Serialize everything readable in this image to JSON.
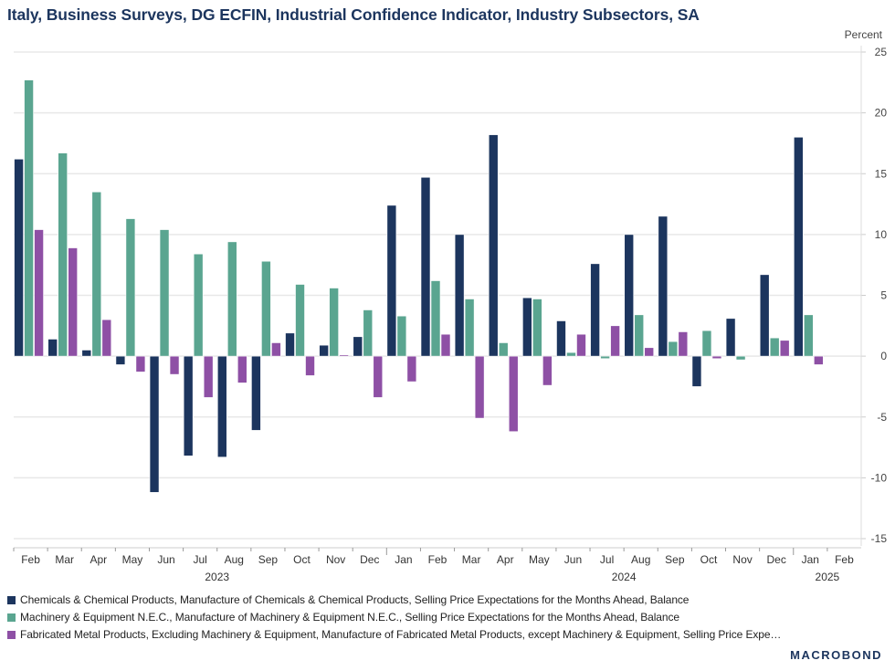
{
  "title": "Italy, Business Surveys, DG ECFIN, Industrial Confidence Indicator, Industry Subsectors, SA",
  "logo": "MACROBOND",
  "chart_data": {
    "type": "bar",
    "title": "Italy, Business Surveys, DG ECFIN, Industrial Confidence Indicator, Industry Subsectors, SA",
    "ylabel": "Percent",
    "ylim": [
      -15,
      25
    ],
    "yticks": [
      25,
      20,
      15,
      10,
      5,
      0,
      -5,
      -10,
      -15
    ],
    "grid": true,
    "y_axis_side": "right",
    "legend_placement": "bottom",
    "categories": [
      "Feb",
      "Mar",
      "Apr",
      "May",
      "Jun",
      "Jul",
      "Aug",
      "Sep",
      "Oct",
      "Nov",
      "Dec",
      "Jan",
      "Feb",
      "Mar",
      "Apr",
      "May",
      "Jun",
      "Jul",
      "Aug",
      "Sep",
      "Oct",
      "Nov",
      "Dec",
      "Jan",
      "Feb"
    ],
    "year_labels": [
      {
        "label": "2023",
        "category_index": 5.5
      },
      {
        "label": "2024",
        "category_index": 17.5
      },
      {
        "label": "2025",
        "category_index": 23.5
      }
    ],
    "series": [
      {
        "name": "Chemicals & Chemical Products, Manufacture of Chemicals & Chemical Products, Selling Price Expectations for the Months Ahead, Balance",
        "color": "#1c355e",
        "values": [
          16.2,
          1.4,
          0.5,
          -0.7,
          -11.2,
          -8.2,
          -8.3,
          -6.1,
          1.9,
          0.9,
          1.6,
          12.4,
          14.7,
          10.0,
          18.2,
          4.8,
          2.9,
          7.6,
          10.0,
          11.5,
          -2.5,
          3.1,
          6.7,
          18.0,
          null
        ]
      },
      {
        "name": "Machinery & Equipment N.E.C., Manufacture of Machinery & Equipment N.E.C., Selling Price Expectations for the Months Ahead, Balance",
        "color": "#5aa590",
        "values": [
          22.7,
          16.7,
          13.5,
          11.3,
          10.4,
          8.4,
          9.4,
          7.8,
          5.9,
          5.6,
          3.8,
          3.3,
          6.2,
          4.7,
          1.1,
          4.7,
          0.3,
          -0.2,
          3.4,
          1.2,
          2.1,
          -0.3,
          1.5,
          3.4,
          null
        ]
      },
      {
        "name": "Fabricated Metal Products, Excluding Machinery & Equipment, Manufacture of Fabricated Metal Products, except Machinery & Equipment, Selling Price Expe…",
        "color": "#8e50a5",
        "values": [
          10.4,
          8.9,
          3.0,
          -1.3,
          -1.5,
          -3.4,
          -2.2,
          1.1,
          -1.6,
          0.1,
          -3.4,
          -2.1,
          1.8,
          -5.1,
          -6.2,
          -2.4,
          1.8,
          2.5,
          0.7,
          2.0,
          -0.2,
          null,
          1.3,
          -0.7,
          null
        ]
      }
    ]
  }
}
